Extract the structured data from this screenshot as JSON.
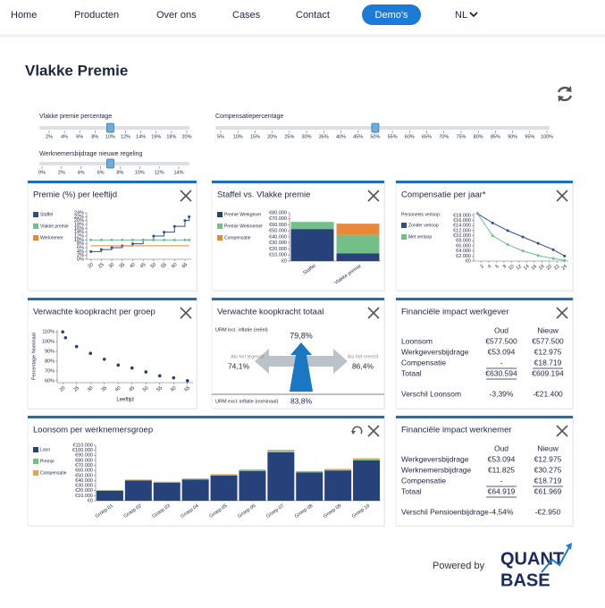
{
  "nav": {
    "items": [
      "Home",
      "Producten",
      "Over ons",
      "Cases",
      "Contact"
    ],
    "button": "Demo's",
    "language": "NL"
  },
  "title": "Vlakke Premie",
  "sliders": [
    {
      "label": "Vlakke premie percentage",
      "value": 10,
      "lim": [
        2,
        20
      ],
      "ticks": [
        {
          "value": 2,
          "label": "2%"
        },
        {
          "value": 4,
          "label": "4%"
        },
        {
          "value": 6,
          "label": "6%"
        },
        {
          "value": 8,
          "label": "8%"
        },
        {
          "value": 10,
          "label": "10%"
        },
        {
          "value": 12,
          "label": "12%"
        },
        {
          "value": 14,
          "label": "14%"
        },
        {
          "value": 16,
          "label": "16%"
        },
        {
          "value": 18,
          "label": "18%"
        },
        {
          "value": 20,
          "label": "20%"
        }
      ]
    },
    {
      "label": "Compensatiepercentage",
      "value": 50,
      "lim": [
        5,
        100
      ],
      "ticks": [
        {
          "value": 5,
          "label": "5%"
        },
        {
          "value": 10,
          "label": "10%"
        },
        {
          "value": 15,
          "label": "15%"
        },
        {
          "value": 20,
          "label": "20%"
        },
        {
          "value": 25,
          "label": "25%"
        },
        {
          "value": 30,
          "label": "30%"
        },
        {
          "value": 35,
          "label": "35%"
        },
        {
          "value": 40,
          "label": "40%"
        },
        {
          "value": 45,
          "label": "45%"
        },
        {
          "value": 50,
          "label": "50%"
        },
        {
          "value": 55,
          "label": "55%"
        },
        {
          "value": 60,
          "label": "60%"
        },
        {
          "value": 65,
          "label": "65%"
        },
        {
          "value": 70,
          "label": "70%"
        },
        {
          "value": 75,
          "label": "75%"
        },
        {
          "value": 80,
          "label": "80%"
        },
        {
          "value": 85,
          "label": "85%"
        },
        {
          "value": 90,
          "label": "90%"
        },
        {
          "value": 95,
          "label": "95%"
        },
        {
          "value": 100,
          "label": "100%"
        }
      ]
    },
    {
      "label": "Werknemersbijdrage nieuwe regeling",
      "value": 7,
      "lim": [
        0,
        14
      ],
      "ticks": [
        {
          "value": 0,
          "label": "0%"
        },
        {
          "value": 2,
          "label": "2%"
        },
        {
          "value": 4,
          "label": "4%"
        },
        {
          "value": 6,
          "label": "6%"
        },
        {
          "value": 8,
          "label": "8%"
        },
        {
          "value": 10,
          "label": "10%"
        },
        {
          "value": 12,
          "label": "12%"
        },
        {
          "value": 14,
          "label": "14%"
        }
      ]
    }
  ],
  "panels": [
    {
      "title": "Premie (%) per leeftijd",
      "chart": {
        "type": "line",
        "x": [
          20,
          25,
          30,
          35,
          40,
          45,
          50,
          55,
          60,
          65,
          67
        ],
        "xlim": [
          18,
          68
        ],
        "xticks": [
          20,
          25,
          30,
          35,
          40,
          45,
          50,
          55,
          60,
          65
        ],
        "ylim": [
          0,
          24
        ],
        "yticks": [
          {
            "value": 0,
            "label": "0%"
          },
          {
            "value": 2,
            "label": "2%"
          },
          {
            "value": 4,
            "label": "4%"
          },
          {
            "value": 6,
            "label": "6%"
          },
          {
            "value": 8,
            "label": "8%"
          },
          {
            "value": 10,
            "label": "10%"
          },
          {
            "value": 12,
            "label": "12%"
          },
          {
            "value": 14,
            "label": "14%"
          },
          {
            "value": 16,
            "label": "16%"
          },
          {
            "value": 18,
            "label": "18%"
          },
          {
            "value": 20,
            "label": "20%"
          },
          {
            "value": 22,
            "label": "22%"
          },
          {
            "value": 24,
            "label": "24%"
          }
        ],
        "series": [
          {
            "name": "Staffel",
            "color": "#2e4f8f",
            "step": true,
            "markers": true,
            "values": [
              4,
              5,
              6,
              7,
              8,
              10,
              12,
              14,
              17,
              20,
              22
            ]
          },
          {
            "name": "Vlakke premie",
            "color": "#6fbf8b",
            "markers": true,
            "values": [
              10,
              10,
              10,
              10,
              10,
              10,
              10,
              10,
              10,
              10,
              10
            ]
          },
          {
            "name": "Werknemer",
            "color": "#e8893a",
            "values": [
              7,
              7,
              7,
              7,
              7,
              7,
              7,
              7,
              7,
              7,
              7
            ]
          }
        ]
      }
    },
    {
      "title": "Staffel vs. Vlakke premie",
      "chart": {
        "type": "bar",
        "stacked": true,
        "categories": [
          "Staffel",
          "Vlakke premie"
        ],
        "ylim": [
          0,
          80000
        ],
        "yticks": [
          {
            "value": 0,
            "label": "€0"
          },
          {
            "value": 10000,
            "label": "€10.000"
          },
          {
            "value": 20000,
            "label": "€20.000"
          },
          {
            "value": 30000,
            "label": "€30.000"
          },
          {
            "value": 40000,
            "label": "€40.000"
          },
          {
            "value": 50000,
            "label": "€50.000"
          },
          {
            "value": 60000,
            "label": "€60.000"
          },
          {
            "value": 70000,
            "label": "€70.000"
          },
          {
            "value": 80000,
            "label": "€80.000"
          }
        ],
        "series": [
          {
            "name": "Premie Werkgever",
            "color": "#27417a",
            "values": [
              53094,
              12975
            ]
          },
          {
            "name": "Premie Werknemer",
            "color": "#73bf8a",
            "values": [
              11825,
              30275
            ]
          },
          {
            "name": "Compensatie",
            "color": "#e8893a",
            "values": [
              null,
              18719
            ]
          }
        ]
      }
    },
    {
      "title": "Compensatie per jaar*",
      "chart": {
        "type": "line",
        "legend_title": "Personeels verloop:",
        "x": [
          1,
          5,
          9,
          13,
          17,
          21,
          24
        ],
        "xlim": [
          0,
          25
        ],
        "xticks": [
          2,
          4,
          6,
          8,
          10,
          12,
          14,
          16,
          18,
          20,
          22,
          24
        ],
        "ylim": [
          0,
          19000
        ],
        "yticks": [
          {
            "value": 0,
            "label": "€0"
          },
          {
            "value": 2000,
            "label": "€2.000"
          },
          {
            "value": 4000,
            "label": "€4.000"
          },
          {
            "value": 6000,
            "label": "€6.000"
          },
          {
            "value": 8000,
            "label": "€8.000"
          },
          {
            "value": 10000,
            "label": "€10.000"
          },
          {
            "value": 12000,
            "label": "€12.000"
          },
          {
            "value": 14000,
            "label": "€14.000"
          },
          {
            "value": 16000,
            "label": "€16.000"
          },
          {
            "value": 18000,
            "label": "€18.000"
          }
        ],
        "series": [
          {
            "name": "Zonder verloop",
            "color": "#2e4f8f",
            "markers": true,
            "values": [
              18719,
              15000,
              12000,
              9500,
              7000,
              4500,
              2000
            ]
          },
          {
            "name": "Met verloop",
            "color": "#6fbf8b",
            "markers": true,
            "values": [
              18719,
              10000,
              6500,
              4000,
              2200,
              1000,
              300
            ]
          }
        ]
      }
    },
    {
      "title": "Verwachte koopkracht per groep",
      "chart": {
        "type": "scatter",
        "x_label": "Leeftijd",
        "y_label": "Percentage Nominaal",
        "color": "#27417a",
        "x": [
          20,
          21,
          25,
          30,
          35,
          40,
          45,
          50,
          55,
          60,
          65
        ],
        "values": [
          110,
          104,
          95,
          88,
          82,
          76,
          73,
          69,
          65,
          63,
          60
        ],
        "xlim": [
          18,
          67
        ],
        "xticks": [
          20,
          25,
          30,
          35,
          40,
          45,
          50,
          55,
          60,
          65
        ],
        "ylim": [
          58,
          112
        ],
        "yticks": [
          {
            "value": 60,
            "label": "60%"
          },
          {
            "value": 70,
            "label": "70%"
          },
          {
            "value": 80,
            "label": "80%"
          },
          {
            "value": 90,
            "label": "90%"
          },
          {
            "value": 100,
            "label": "100%"
          },
          {
            "value": 110,
            "label": "110%"
          }
        ]
      }
    },
    {
      "title": "Verwachte koopkracht totaal",
      "diagram": {
        "top_label": "URM incl. inflatie (reëel)",
        "center_value": "79,8%",
        "left_label": "Als het tegenzit",
        "left_value": "74,1%",
        "right_label": "Als het meezit",
        "right_value": "86,4%",
        "bottom_label": "URM excl. inflatie (nominaal)",
        "bottom_value": "83,8%"
      }
    },
    {
      "title": "Financiële impact werkgever",
      "table": {
        "columns": [
          "Oud",
          "Nieuw"
        ],
        "rows": [
          [
            "Loonsom",
            "€577.500",
            "€577.500"
          ],
          [
            "Werkgeversbijdrage",
            "€53.094",
            "€12.975"
          ],
          [
            "Compensatie",
            "-",
            "€18.719"
          ],
          [
            "Totaal",
            "€630.594",
            "€609.194"
          ]
        ],
        "summary": [
          "Verschil Loonsom",
          "-3,39%",
          "-€21.400"
        ]
      }
    },
    {
      "title": "Loonsom per werknemersgroep",
      "chart": {
        "type": "bar",
        "stacked": true,
        "categories": [
          "Groep 01",
          "Groep 02",
          "Groep 03",
          "Groep 04",
          "Groep 05",
          "Groep 06",
          "Groep 07",
          "Groep 08",
          "Groep 09",
          "Groep 10"
        ],
        "ylim": [
          0,
          110000
        ],
        "yticks": [
          {
            "value": 0,
            "label": "€0"
          },
          {
            "value": 10000,
            "label": "€10.000"
          },
          {
            "value": 20000,
            "label": "€20.000"
          },
          {
            "value": 30000,
            "label": "€30.000"
          },
          {
            "value": 40000,
            "label": "€40.000"
          },
          {
            "value": 50000,
            "label": "€50.000"
          },
          {
            "value": 60000,
            "label": "€60.000"
          },
          {
            "value": 70000,
            "label": "€70.000"
          },
          {
            "value": 80000,
            "label": "€80.000"
          },
          {
            "value": 90000,
            "label": "€90.000"
          },
          {
            "value": 100000,
            "label": "€100.000"
          },
          {
            "value": 110000,
            "label": "€110.000"
          }
        ],
        "series": [
          {
            "name": "Loon",
            "color": "#27417a",
            "values": [
              20000,
              40000,
              36000,
              42000,
              50000,
              59000,
              96000,
              56000,
              60000,
              80000
            ]
          },
          {
            "name": "Premie",
            "color": "#73bf8a",
            "values": [
              600,
              1200,
              1000,
              1300,
              1500,
              1800,
              2800,
              1600,
              1800,
              2400
            ]
          },
          {
            "name": "Compensatie",
            "color": "#e8a34a",
            "values": [
              400,
              900,
              700,
              900,
              1100,
              1300,
              2200,
              1200,
              1300,
              1800
            ]
          }
        ]
      }
    },
    {
      "title": "Financiële impact werknemer",
      "table": {
        "columns": [
          "Oud",
          "Nieuw"
        ],
        "rows": [
          [
            "Werkgeversbijdrage",
            "€53.094",
            "€12.975"
          ],
          [
            "Werknemersbijdrage",
            "€11.825",
            "€30.275"
          ],
          [
            "Compensatie",
            "-",
            "€18.719"
          ],
          [
            "Totaal",
            "€64.919",
            "€61.969"
          ]
        ],
        "summary": [
          "Verschil Pensioenbijdrage",
          "-4,54%",
          "-€2.950"
        ]
      }
    }
  ],
  "footer": {
    "powered_by": "Powered by",
    "logo": [
      "QUANT",
      "BASE"
    ]
  }
}
